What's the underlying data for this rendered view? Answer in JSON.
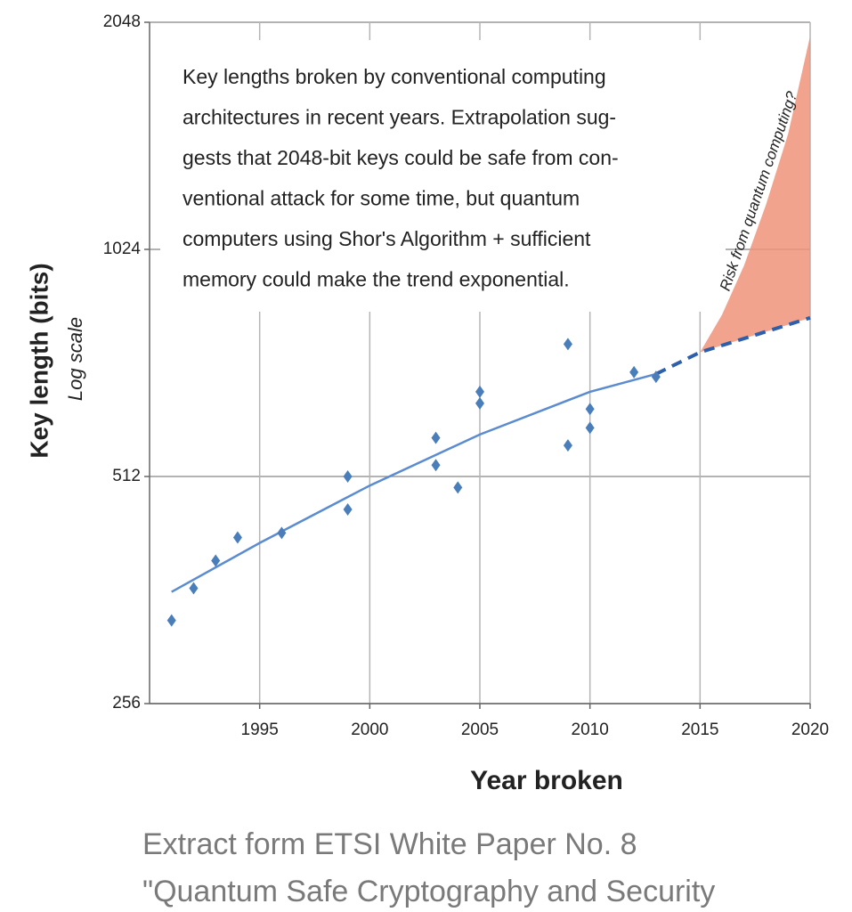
{
  "chart_data": {
    "type": "scatter",
    "xlabel": "Year broken",
    "ylabel": "Key length (bits)",
    "ylabel_note": "Log scale",
    "log_y": true,
    "grid": true,
    "xlim": [
      1990,
      2020
    ],
    "ylim": [
      256,
      2048
    ],
    "xticks": [
      1995,
      2000,
      2005,
      2010,
      2015,
      2020
    ],
    "yticks": [
      256,
      512,
      1024,
      2048
    ],
    "x": [
      1991,
      1992,
      1993,
      1994,
      1996,
      1999,
      1999,
      2003,
      2003,
      2004,
      2005,
      2005,
      2009,
      2009,
      2010,
      2010,
      2012,
      2013
    ],
    "values": [
      330,
      364,
      396,
      425,
      431,
      512,
      463,
      576,
      530,
      495,
      663,
      640,
      767,
      563,
      629,
      594,
      704,
      694
    ],
    "color": "#4a7ebb",
    "trend": {
      "x": [
        1991,
        1995,
        2000,
        2005,
        2010,
        2013
      ],
      "values": [
        360,
        418,
        498,
        582,
        663,
        700
      ],
      "color": "#5b8bd0"
    },
    "projection": {
      "x": [
        2013,
        2015,
        2020
      ],
      "values": [
        700,
        748,
        831
      ],
      "color": "#2e5faa"
    },
    "risk_area": {
      "x": [
        2015,
        2016,
        2017,
        2018,
        2019,
        2020
      ],
      "values": [
        748,
        839,
        975,
        1175,
        1457,
        1965
      ],
      "color": "#f0937a",
      "label": "Risk from quantum computing?"
    },
    "annotation": [
      "Key lengths broken by conventional computing",
      "architectures in recent years.  Extrapolation sug-",
      "gests that 2048-bit keys could be safe from con-",
      "ventional attack for some time, but quantum",
      "computers using Shor's Algorithm + sufficient",
      "memory could make the trend exponential."
    ],
    "caption": [
      "Extract form ETSI White Paper No. 8",
      "\"Quantum Safe Cryptography and Security"
    ]
  }
}
